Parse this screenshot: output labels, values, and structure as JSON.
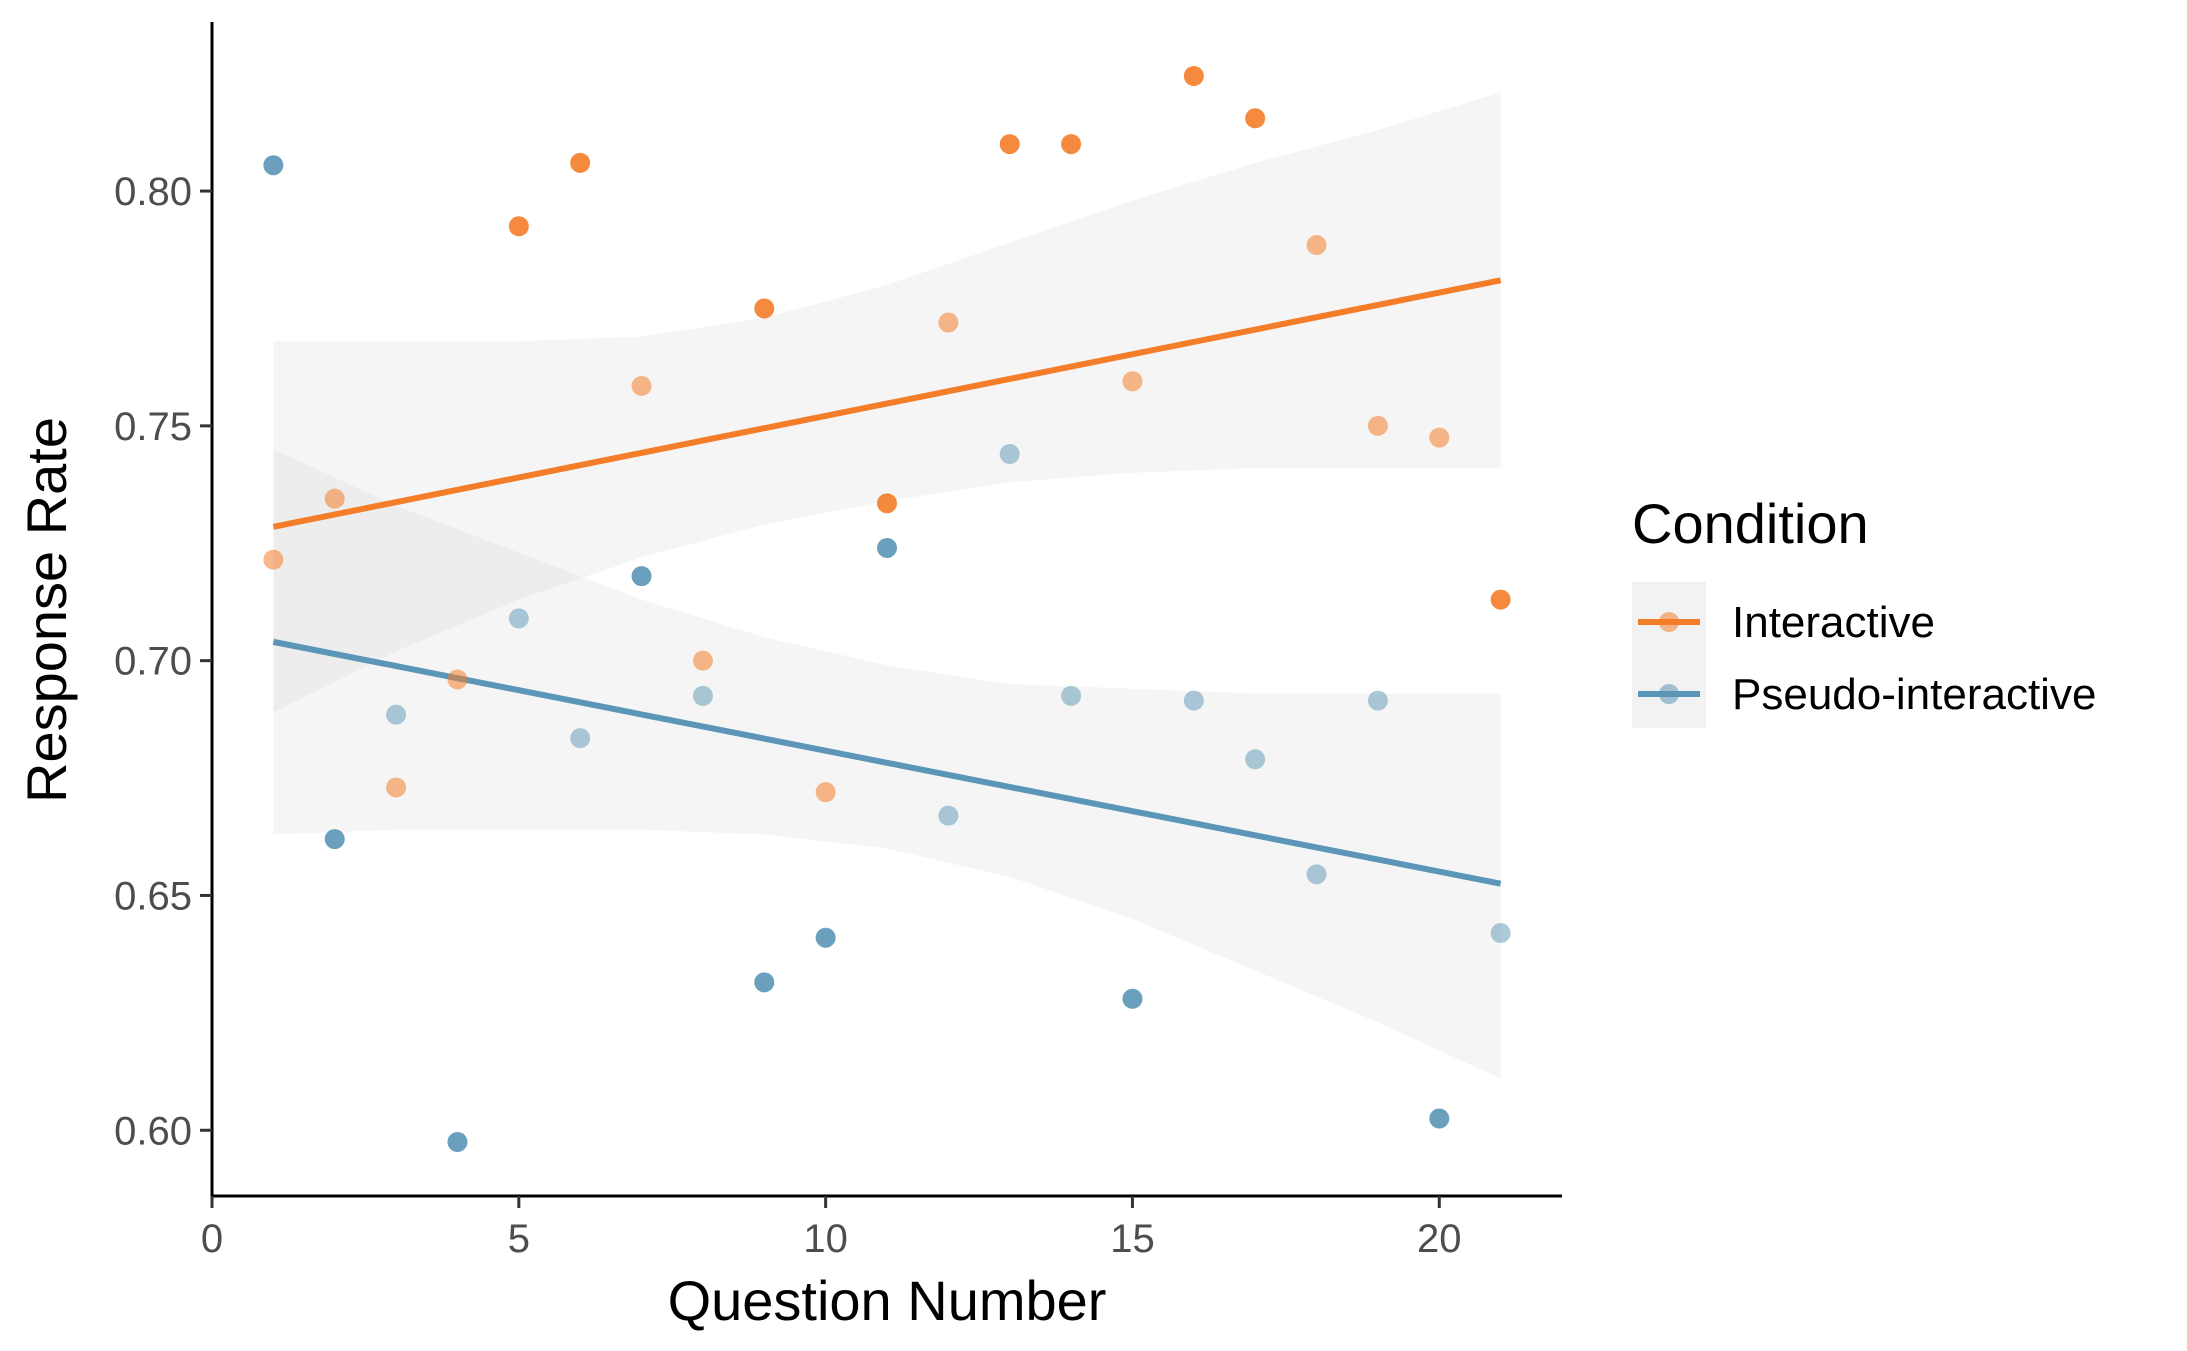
{
  "chart_data": {
    "type": "scatter",
    "title": "",
    "xlabel": "Question Number",
    "ylabel": "Response Rate",
    "xlim": [
      0,
      22
    ],
    "ylim": [
      0.586,
      0.836
    ],
    "x_ticks": [
      0,
      5,
      10,
      15,
      20
    ],
    "y_ticks": [
      0.6,
      0.65,
      0.7,
      0.75,
      0.8
    ],
    "x_tick_labels": [
      "0",
      "5",
      "10",
      "15",
      "20"
    ],
    "y_tick_labels": [
      "0.60",
      "0.65",
      "0.70",
      "0.75",
      "0.80"
    ],
    "grid": false,
    "legend": {
      "title": "Condition",
      "placement": "right",
      "entries": [
        "Interactive",
        "Pseudo-interactive"
      ]
    },
    "series": [
      {
        "name": "Interactive",
        "color": "#F47D2A",
        "points": [
          {
            "x": 1,
            "y": 0.7215,
            "alpha": 0.55
          },
          {
            "x": 2,
            "y": 0.7345,
            "alpha": 0.55
          },
          {
            "x": 3,
            "y": 0.673,
            "alpha": 0.55
          },
          {
            "x": 4,
            "y": 0.696,
            "alpha": 0.55
          },
          {
            "x": 5,
            "y": 0.7925,
            "alpha": 0.9
          },
          {
            "x": 6,
            "y": 0.806,
            "alpha": 0.9
          },
          {
            "x": 7,
            "y": 0.7585,
            "alpha": 0.55
          },
          {
            "x": 8,
            "y": 0.7,
            "alpha": 0.55
          },
          {
            "x": 9,
            "y": 0.775,
            "alpha": 0.9
          },
          {
            "x": 10,
            "y": 0.672,
            "alpha": 0.55
          },
          {
            "x": 11,
            "y": 0.7335,
            "alpha": 0.9
          },
          {
            "x": 12,
            "y": 0.772,
            "alpha": 0.55
          },
          {
            "x": 13,
            "y": 0.81,
            "alpha": 0.9
          },
          {
            "x": 14,
            "y": 0.81,
            "alpha": 0.9
          },
          {
            "x": 15,
            "y": 0.7595,
            "alpha": 0.55
          },
          {
            "x": 16,
            "y": 0.8245,
            "alpha": 0.9
          },
          {
            "x": 17,
            "y": 0.8155,
            "alpha": 0.9
          },
          {
            "x": 18,
            "y": 0.7885,
            "alpha": 0.55
          },
          {
            "x": 19,
            "y": 0.75,
            "alpha": 0.55
          },
          {
            "x": 20,
            "y": 0.7475,
            "alpha": 0.55
          },
          {
            "x": 21,
            "y": 0.713,
            "alpha": 0.9
          }
        ],
        "trend": {
          "x": [
            1,
            21
          ],
          "y": [
            0.7285,
            0.781
          ]
        },
        "ribbon": {
          "x": [
            1,
            3,
            5,
            7,
            9,
            11,
            13,
            15,
            17,
            19,
            21
          ],
          "lower": [
            0.689,
            0.702,
            0.713,
            0.722,
            0.729,
            0.734,
            0.738,
            0.74,
            0.741,
            0.741,
            0.741
          ],
          "upper": [
            0.768,
            0.768,
            0.768,
            0.769,
            0.773,
            0.78,
            0.789,
            0.798,
            0.806,
            0.813,
            0.821
          ]
        }
      },
      {
        "name": "Pseudo-interactive",
        "color": "#5B95B7",
        "points": [
          {
            "x": 1,
            "y": 0.8055,
            "alpha": 0.9
          },
          {
            "x": 2,
            "y": 0.662,
            "alpha": 0.9
          },
          {
            "x": 3,
            "y": 0.6885,
            "alpha": 0.5
          },
          {
            "x": 4,
            "y": 0.5975,
            "alpha": 0.9
          },
          {
            "x": 5,
            "y": 0.709,
            "alpha": 0.5
          },
          {
            "x": 6,
            "y": 0.6835,
            "alpha": 0.5
          },
          {
            "x": 7,
            "y": 0.718,
            "alpha": 0.9
          },
          {
            "x": 8,
            "y": 0.6925,
            "alpha": 0.5
          },
          {
            "x": 9,
            "y": 0.6315,
            "alpha": 0.9
          },
          {
            "x": 10,
            "y": 0.641,
            "alpha": 0.9
          },
          {
            "x": 11,
            "y": 0.724,
            "alpha": 0.9
          },
          {
            "x": 12,
            "y": 0.667,
            "alpha": 0.5
          },
          {
            "x": 13,
            "y": 0.744,
            "alpha": 0.5
          },
          {
            "x": 14,
            "y": 0.6925,
            "alpha": 0.5
          },
          {
            "x": 15,
            "y": 0.628,
            "alpha": 0.9
          },
          {
            "x": 16,
            "y": 0.6915,
            "alpha": 0.5
          },
          {
            "x": 17,
            "y": 0.679,
            "alpha": 0.5
          },
          {
            "x": 18,
            "y": 0.6545,
            "alpha": 0.5
          },
          {
            "x": 19,
            "y": 0.6915,
            "alpha": 0.5
          },
          {
            "x": 20,
            "y": 0.6025,
            "alpha": 0.9
          },
          {
            "x": 21,
            "y": 0.642,
            "alpha": 0.5
          }
        ],
        "trend": {
          "x": [
            1,
            21
          ],
          "y": [
            0.704,
            0.6525
          ]
        },
        "ribbon": {
          "x": [
            1,
            3,
            5,
            7,
            9,
            11,
            13,
            15,
            17,
            19,
            21
          ],
          "lower": [
            0.663,
            0.664,
            0.664,
            0.664,
            0.663,
            0.66,
            0.654,
            0.645,
            0.634,
            0.623,
            0.611
          ],
          "upper": [
            0.745,
            0.733,
            0.723,
            0.713,
            0.705,
            0.699,
            0.695,
            0.694,
            0.693,
            0.693,
            0.693
          ]
        }
      }
    ]
  }
}
